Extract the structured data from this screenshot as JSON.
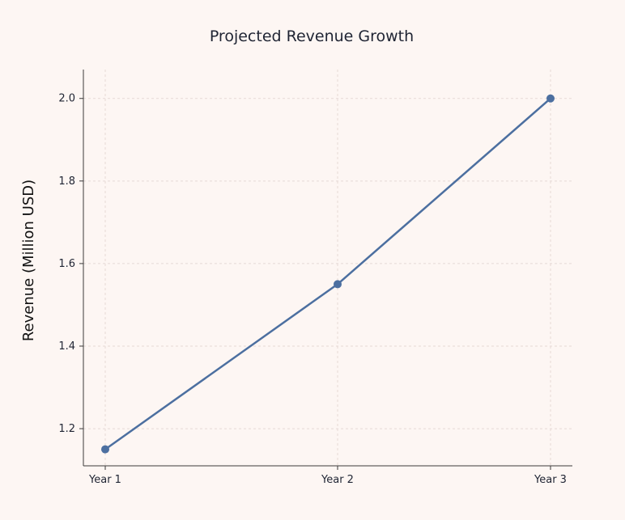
{
  "chart_data": {
    "type": "line",
    "title": "Projected Revenue Growth",
    "xlabel": "",
    "ylabel": "Revenue (Million USD)",
    "categories": [
      "Year 1",
      "Year 2",
      "Year 3"
    ],
    "series": [
      {
        "name": "Revenue",
        "values": [
          1.15,
          1.55,
          2.0
        ],
        "color": "#4c6fa0"
      }
    ],
    "ylim": [
      1.11,
      2.07
    ],
    "yticks": [
      1.2,
      1.4,
      1.6,
      1.8,
      2.0
    ],
    "ytick_labels": [
      "1.2",
      "1.4",
      "1.6",
      "1.8",
      "2.0"
    ],
    "grid": true,
    "background_color": "#fdf6f3"
  }
}
